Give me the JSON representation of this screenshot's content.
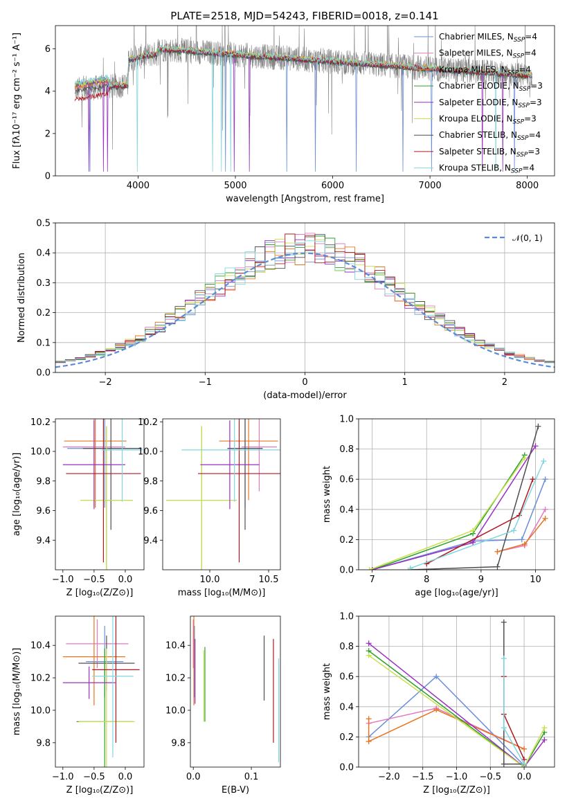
{
  "title": "PLATE=2518, MJD=54243, FIBERID=0018, z=0.141",
  "chart_data": [
    {
      "id": "spectrum",
      "type": "line",
      "xlabel": "wavelength [Angstrom, rest frame]",
      "ylabel": "Flux [fλ10⁻¹⁷ erg cm⁻² s⁻¹ A⁻¹]",
      "xlim": [
        3150,
        8280
      ],
      "ylim": [
        0,
        7.1
      ],
      "xticks": [
        4000,
        5000,
        6000,
        7000,
        8000
      ],
      "yticks": [
        0,
        2,
        4,
        6
      ],
      "grid": false,
      "legend_position": "upper right",
      "observed_color": "#808080",
      "model_xrange": [
        3350,
        8050
      ],
      "series": [
        {
          "name": "Chabrier MILES, N_SSP=4",
          "color": "#6a8fd8",
          "start": 4.3
        },
        {
          "name": "Salpeter MILES, N_SSP=4",
          "color": "#e377c2",
          "start": 4.2
        },
        {
          "name": "Kroupa MILES, N_SSP=4",
          "color": "#e6741e",
          "start": 4.2
        },
        {
          "name": "Chabrier ELODIE, N_SSP=3",
          "color": "#2ca02c",
          "start": 4.3
        },
        {
          "name": "Salpeter ELODIE, N_SSP=3",
          "color": "#9a2fc0",
          "start": 4.3
        },
        {
          "name": "Kroupa ELODIE, N_SSP=3",
          "color": "#c8e04a",
          "start": 4.3
        },
        {
          "name": "Chabrier STELIB, N_SSP=4",
          "color": "#4d4d4d",
          "start": 4.0
        },
        {
          "name": "Salpeter STELIB, N_SSP=3",
          "color": "#b0181f",
          "start": 3.6
        },
        {
          "name": "Kroupa STELIB, N_SSP=4",
          "color": "#7fd6dd",
          "start": 4.4
        }
      ]
    },
    {
      "id": "residuals",
      "type": "histogram",
      "xlabel": "(data-model)/error",
      "ylabel": "Normed distribution",
      "xlim": [
        -2.5,
        2.5
      ],
      "ylim": [
        0,
        0.5
      ],
      "xticks": [
        -2,
        -1,
        0,
        1,
        2
      ],
      "yticks": [
        0.0,
        0.1,
        0.2,
        0.3,
        0.4,
        0.5
      ],
      "grid": true,
      "legend_position": "upper right",
      "reference_curve": {
        "name": "𝒩(0, 1)",
        "color": "#5b8ad6",
        "mean": 0,
        "sigma": 1
      },
      "bin_width": 0.1,
      "series_colors": [
        "#6a8fd8",
        "#e377c2",
        "#e6741e",
        "#2ca02c",
        "#9a2fc0",
        "#c8e04a",
        "#4d4d4d",
        "#b0181f",
        "#7fd6dd"
      ]
    },
    {
      "id": "age-vs-Z",
      "type": "errorbar",
      "xlabel": "Z [log₁₀(Z/Z⊙)]",
      "ylabel": "age  [log₁₀(age/yr)]",
      "xlim": [
        -1.12,
        0.3
      ],
      "ylim": [
        9.2,
        10.22
      ],
      "xticks": [
        -1.0,
        -0.5,
        0.0
      ],
      "yticks": [
        9.4,
        9.6,
        9.8,
        10.0,
        10.2
      ],
      "xticklabels": [
        "−1.0",
        "−0.5",
        "0.0"
      ],
      "yticklabels": [
        "9.4",
        "9.6",
        "9.8",
        "10.0",
        "10.2"
      ],
      "points": [
        {
          "x": -0.33,
          "y": 10.02,
          "xerr": 0.6,
          "yerr": 0.4,
          "color": "#6a8fd8"
        },
        {
          "x": -0.5,
          "y": 10.03,
          "xerr": 0.5,
          "yerr": 0.4,
          "color": "#e377c2"
        },
        {
          "x": -0.48,
          "y": 10.07,
          "xerr": 0.5,
          "yerr": 0.45,
          "color": "#e6741e"
        },
        {
          "x": -0.23,
          "y": 10.02,
          "xerr": 0.45,
          "yerr": 0.55,
          "color": "#4d4d4d"
        },
        {
          "x": -0.3,
          "y": 9.67,
          "xerr": 0.42,
          "yerr": 0.5,
          "color": "#2ca02c"
        },
        {
          "x": -0.3,
          "y": 9.67,
          "xerr": 0.42,
          "yerr": 0.5,
          "color": "#c8e04a"
        },
        {
          "x": -0.5,
          "y": 9.91,
          "xerr": 0.5,
          "yerr": 0.3,
          "color": "#9a2fc0"
        },
        {
          "x": -0.35,
          "y": 9.85,
          "xerr": 0.6,
          "yerr": 0.6,
          "color": "#b0181f"
        },
        {
          "x": -0.05,
          "y": 10.01,
          "xerr": 0.33,
          "yerr": 0.35,
          "color": "#7fd6dd"
        }
      ]
    },
    {
      "id": "age-vs-mass",
      "type": "errorbar",
      "xlabel": "mass [log₁₀(M/M⊙)]",
      "ylabel": "",
      "xlim": [
        9.6,
        10.6
      ],
      "ylim": [
        9.2,
        10.22
      ],
      "xticks": [
        10.0,
        10.5
      ],
      "yticks": [
        9.4,
        9.6,
        9.8,
        10.0,
        10.2
      ],
      "xticklabels": [
        "10.0",
        "10.5"
      ],
      "yticklabels": [
        "9.4",
        "9.6",
        "9.8",
        "10.0",
        "10.2"
      ],
      "points": [
        {
          "x": 10.3,
          "y": 10.02,
          "xerr": 0.15,
          "yerr": 0.4,
          "color": "#6a8fd8"
        },
        {
          "x": 10.42,
          "y": 10.03,
          "xerr": 0.15,
          "yerr": 0.3,
          "color": "#e377c2"
        },
        {
          "x": 10.33,
          "y": 10.07,
          "xerr": 0.25,
          "yerr": 0.4,
          "color": "#e6741e"
        },
        {
          "x": 10.3,
          "y": 10.02,
          "xerr": 0.15,
          "yerr": 0.55,
          "color": "#4d4d4d"
        },
        {
          "x": 9.93,
          "y": 9.67,
          "xerr": 0.3,
          "yerr": 0.5,
          "color": "#2ca02c"
        },
        {
          "x": 9.93,
          "y": 9.67,
          "xerr": 0.3,
          "yerr": 0.5,
          "color": "#c8e04a"
        },
        {
          "x": 10.17,
          "y": 9.91,
          "xerr": 0.25,
          "yerr": 0.3,
          "color": "#9a2fc0"
        },
        {
          "x": 10.25,
          "y": 9.85,
          "xerr": 0.35,
          "yerr": 0.6,
          "color": "#b0181f"
        },
        {
          "x": 10.21,
          "y": 10.01,
          "xerr": 0.45,
          "yerr": 0.35,
          "color": "#7fd6dd"
        }
      ]
    },
    {
      "id": "massweight-vs-age",
      "type": "line",
      "xlabel": "age  [log₁₀(age/yr)]",
      "ylabel": "mass weight",
      "xlim": [
        6.75,
        10.35
      ],
      "ylim": [
        0,
        1
      ],
      "xticks": [
        7,
        8,
        9,
        10
      ],
      "yticks": [
        0.0,
        0.2,
        0.4,
        0.6,
        0.8,
        1.0
      ],
      "xticklabels": [
        "7",
        "8",
        "9",
        "10"
      ],
      "yticklabels": [
        "0.0",
        "0.2",
        "0.4",
        "0.6",
        "0.8",
        "1.0"
      ],
      "grid": true,
      "series": [
        {
          "color": "#6a8fd8",
          "x": [
            7.0,
            8.85,
            9.75,
            10.18
          ],
          "y": [
            0.0,
            0.19,
            0.2,
            0.6
          ]
        },
        {
          "color": "#e377c2",
          "x": [
            9.3,
            9.8,
            10.18
          ],
          "y": [
            0.12,
            0.16,
            0.4
          ]
        },
        {
          "color": "#e6741e",
          "x": [
            9.3,
            9.8,
            10.18
          ],
          "y": [
            0.12,
            0.17,
            0.34
          ]
        },
        {
          "color": "#2ca02c",
          "x": [
            7.0,
            8.85,
            9.8
          ],
          "y": [
            0.0,
            0.24,
            0.76
          ]
        },
        {
          "color": "#9a2fc0",
          "x": [
            7.0,
            8.85,
            10.0
          ],
          "y": [
            0.0,
            0.18,
            0.82
          ]
        },
        {
          "color": "#c8e04a",
          "x": [
            6.95,
            8.85,
            9.8
          ],
          "y": [
            0.0,
            0.26,
            0.74
          ]
        },
        {
          "color": "#4d4d4d",
          "x": [
            7.7,
            9.3,
            10.05
          ],
          "y": [
            0.0,
            0.02,
            0.95
          ]
        },
        {
          "color": "#b0181f",
          "x": [
            8.0,
            9.7,
            9.95
          ],
          "y": [
            0.04,
            0.36,
            0.6
          ]
        },
        {
          "color": "#7fd6dd",
          "x": [
            7.7,
            9.6,
            10.15
          ],
          "y": [
            0.01,
            0.26,
            0.72
          ]
        }
      ]
    },
    {
      "id": "mass-vs-Z",
      "type": "errorbar",
      "xlabel": "Z [log₁₀(Z/Z⊙)]",
      "ylabel": "mass [log₁₀(M/M⊙)]",
      "xlim": [
        -1.12,
        0.3
      ],
      "ylim": [
        9.65,
        10.58
      ],
      "xticks": [
        -1.0,
        -0.5,
        0.0
      ],
      "yticks": [
        9.8,
        10.0,
        10.2,
        10.4
      ],
      "xticklabels": [
        "−1.0",
        "−0.5",
        "0.0"
      ],
      "yticklabels": [
        "9.8",
        "10.0",
        "10.2",
        "10.4"
      ],
      "points": [
        {
          "x": -0.33,
          "y": 10.3,
          "xerr": 0.3,
          "yerr": 0.22,
          "color": "#6a8fd8"
        },
        {
          "x": -0.45,
          "y": 10.41,
          "xerr": 0.5,
          "yerr": 0.15,
          "color": "#e377c2"
        },
        {
          "x": -0.5,
          "y": 10.33,
          "xerr": 0.5,
          "yerr": 0.3,
          "color": "#e6741e"
        },
        {
          "x": -0.3,
          "y": 10.29,
          "xerr": 0.45,
          "yerr": 0.17,
          "color": "#4d4d4d"
        },
        {
          "x": -0.33,
          "y": 9.93,
          "xerr": 0.45,
          "yerr": 0.45,
          "color": "#2ca02c"
        },
        {
          "x": -0.3,
          "y": 9.93,
          "xerr": 0.45,
          "yerr": 0.45,
          "color": "#c8e04a"
        },
        {
          "x": -0.58,
          "y": 10.17,
          "xerr": 0.42,
          "yerr": 0.1,
          "color": "#9a2fc0"
        },
        {
          "x": -0.15,
          "y": 10.25,
          "xerr": 0.38,
          "yerr": 0.45,
          "color": "#b0181f"
        },
        {
          "x": -0.2,
          "y": 10.21,
          "xerr": 0.33,
          "yerr": 0.5,
          "color": "#7fd6dd"
        }
      ]
    },
    {
      "id": "mass-vs-EBV",
      "type": "errorbar",
      "xlabel": "E(B-V)",
      "ylabel": "",
      "xlim": [
        -0.005,
        0.15
      ],
      "ylim": [
        9.65,
        10.58
      ],
      "xticks": [
        0.0,
        0.1
      ],
      "yticks": [
        9.8,
        10.0,
        10.2,
        10.4
      ],
      "xticklabels": [
        "0.0",
        "0.1"
      ],
      "yticklabels": [
        "9.8",
        "10.0",
        "10.2",
        "10.4"
      ],
      "points": [
        {
          "x": 0.002,
          "y": 10.3,
          "xerr": 0,
          "yerr": 0.22,
          "color": "#6a8fd8"
        },
        {
          "x": 0.0,
          "y": 10.41,
          "xerr": 0,
          "yerr": 0.15,
          "color": "#e377c2"
        },
        {
          "x": 0.001,
          "y": 10.33,
          "xerr": 0,
          "yerr": 0.3,
          "color": "#e6741e"
        },
        {
          "x": 0.122,
          "y": 10.26,
          "xerr": 0,
          "yerr": 0.2,
          "color": "#4d4d4d"
        },
        {
          "x": 0.02,
          "y": 10.16,
          "xerr": 0,
          "yerr": 0.23,
          "color": "#2ca02c"
        },
        {
          "x": 0.018,
          "y": 10.15,
          "xerr": 0,
          "yerr": 0.22,
          "color": "#c8e04a"
        },
        {
          "x": 0.003,
          "y": 10.24,
          "xerr": 0,
          "yerr": 0.2,
          "color": "#9a2fc0"
        },
        {
          "x": 0.138,
          "y": 10.12,
          "xerr": 0,
          "yerr": 0.32,
          "color": "#b0181f"
        },
        {
          "x": 0.147,
          "y": 10.0,
          "xerr": 0,
          "yerr": 0.32,
          "color": "#7fd6dd"
        }
      ]
    },
    {
      "id": "massweight-vs-Z",
      "type": "line",
      "xlabel": "Z [log₁₀(Z/Z⊙)]",
      "ylabel": "mass weight",
      "xlim": [
        -2.45,
        0.45
      ],
      "ylim": [
        0,
        1
      ],
      "xticks": [
        -2.0,
        -1.5,
        -1.0,
        -0.5,
        0.0
      ],
      "yticks": [
        0.0,
        0.2,
        0.4,
        0.6,
        0.8,
        1.0
      ],
      "xticklabels": [
        "−2.0",
        "−1.5",
        "−1.0",
        "−0.5",
        "0.0"
      ],
      "yticklabels": [
        "0.0",
        "0.2",
        "0.4",
        "0.6",
        "0.8",
        "1.0"
      ],
      "grid": true,
      "series": [
        {
          "color": "#6a8fd8",
          "x": [
            -2.3,
            -1.3,
            0.0
          ],
          "y": [
            0.2,
            0.6,
            0.01
          ]
        },
        {
          "color": "#e377c2",
          "x": [
            -2.3,
            -1.3,
            0.0
          ],
          "y": [
            0.29,
            0.39,
            0.12
          ]
        },
        {
          "color": "#e6741e",
          "x": [
            -2.3,
            -2.3,
            -1.3,
            0.0
          ],
          "y": [
            0.32,
            0.17,
            0.38,
            0.12
          ]
        },
        {
          "color": "#2ca02c",
          "x": [
            -2.3,
            0.0,
            0.3
          ],
          "y": [
            0.77,
            0.0,
            0.23
          ]
        },
        {
          "color": "#9a2fc0",
          "x": [
            -2.3,
            0.0,
            0.3
          ],
          "y": [
            0.82,
            0.0,
            0.18
          ]
        },
        {
          "color": "#c8e04a",
          "x": [
            -2.3,
            0.0,
            0.3
          ],
          "y": [
            0.74,
            0.0,
            0.26
          ]
        },
        {
          "color": "#4d4d4d",
          "x": [
            -0.3,
            -0.3,
            0.0
          ],
          "y": [
            0.96,
            0.02,
            0.02
          ]
        },
        {
          "color": "#b0181f",
          "x": [
            -0.3,
            -0.3,
            0.0
          ],
          "y": [
            0.6,
            0.35,
            0.05
          ]
        },
        {
          "color": "#7fd6dd",
          "x": [
            -0.3,
            -0.3,
            0.0
          ],
          "y": [
            0.72,
            0.26,
            0.02
          ]
        }
      ]
    }
  ]
}
